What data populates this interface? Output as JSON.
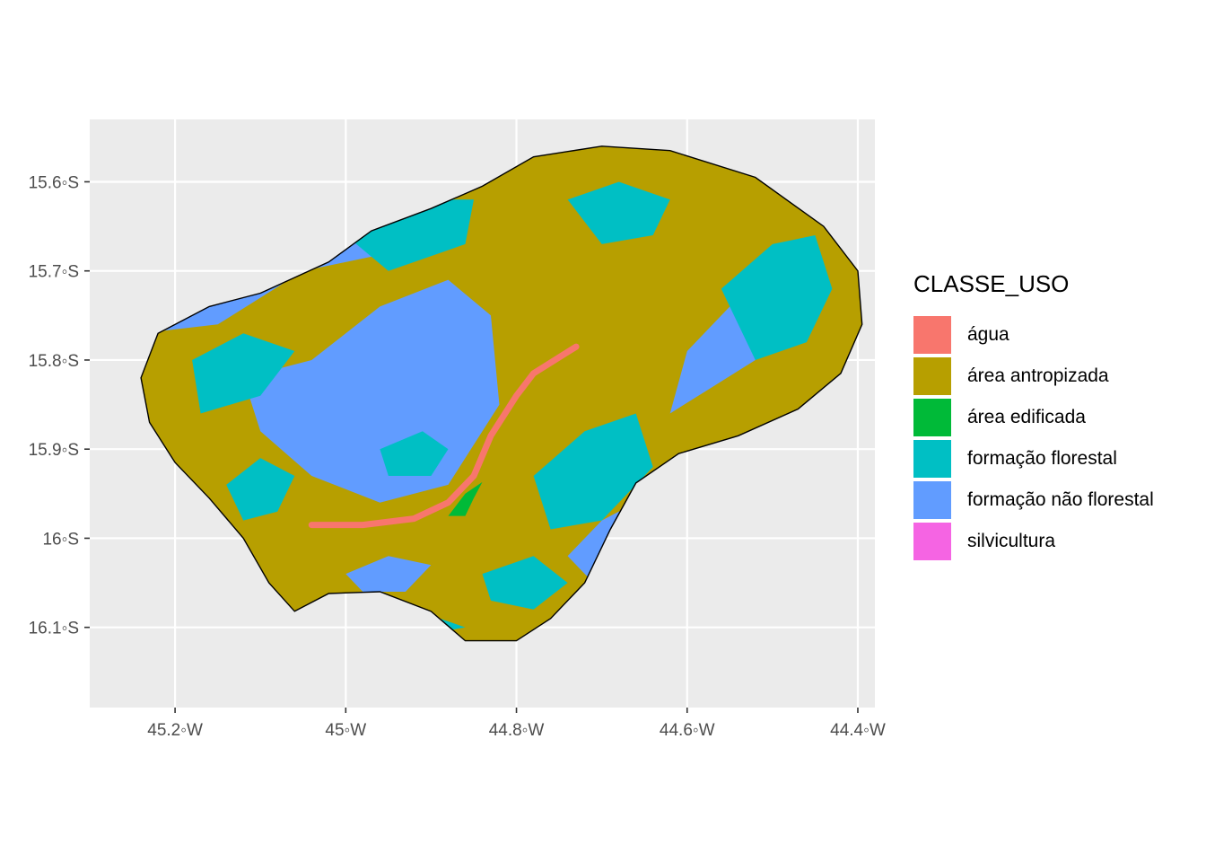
{
  "map": {
    "x_ticks": [
      {
        "lon": -45.2,
        "label": "45.2◦W"
      },
      {
        "lon": -45.0,
        "label": "45◦W"
      },
      {
        "lon": -44.8,
        "label": "44.8◦W"
      },
      {
        "lon": -44.6,
        "label": "44.6◦W"
      },
      {
        "lon": -44.4,
        "label": "44.4◦W"
      }
    ],
    "y_ticks": [
      {
        "lat": -15.6,
        "label": "15.6◦S"
      },
      {
        "lat": -15.7,
        "label": "15.7◦S"
      },
      {
        "lat": -15.8,
        "label": "15.8◦S"
      },
      {
        "lat": -15.9,
        "label": "15.9◦S"
      },
      {
        "lat": -16.0,
        "label": "16◦S"
      },
      {
        "lat": -16.1,
        "label": "16.1◦S"
      }
    ],
    "xlim": [
      -45.3,
      -44.38
    ],
    "ylim": [
      -16.19,
      -15.53
    ],
    "panel_background": "#ebebeb",
    "grid": true,
    "outline": [
      [
        -45.1,
        -15.725
      ],
      [
        -45.02,
        -15.69
      ],
      [
        -44.97,
        -15.655
      ],
      [
        -44.9,
        -15.63
      ],
      [
        -44.84,
        -15.605
      ],
      [
        -44.78,
        -15.572
      ],
      [
        -44.7,
        -15.56
      ],
      [
        -44.62,
        -15.565
      ],
      [
        -44.52,
        -15.595
      ],
      [
        -44.44,
        -15.65
      ],
      [
        -44.4,
        -15.7
      ],
      [
        -44.395,
        -15.76
      ],
      [
        -44.42,
        -15.815
      ],
      [
        -44.47,
        -15.855
      ],
      [
        -44.54,
        -15.885
      ],
      [
        -44.61,
        -15.905
      ],
      [
        -44.66,
        -15.938
      ],
      [
        -44.69,
        -15.99
      ],
      [
        -44.72,
        -16.05
      ],
      [
        -44.76,
        -16.09
      ],
      [
        -44.8,
        -16.115
      ],
      [
        -44.86,
        -16.115
      ],
      [
        -44.9,
        -16.082
      ],
      [
        -44.96,
        -16.06
      ],
      [
        -45.02,
        -16.062
      ],
      [
        -45.06,
        -16.082
      ],
      [
        -45.09,
        -16.05
      ],
      [
        -45.12,
        -16.0
      ],
      [
        -45.16,
        -15.955
      ],
      [
        -45.2,
        -15.915
      ],
      [
        -45.23,
        -15.87
      ],
      [
        -45.24,
        -15.82
      ],
      [
        -45.22,
        -15.77
      ],
      [
        -45.16,
        -15.74
      ]
    ],
    "river": [
      [
        -45.04,
        -15.985
      ],
      [
        -44.98,
        -15.985
      ],
      [
        -44.92,
        -15.978
      ],
      [
        -44.88,
        -15.96
      ],
      [
        -44.85,
        -15.93
      ],
      [
        -44.83,
        -15.885
      ],
      [
        -44.8,
        -15.84
      ],
      [
        -44.78,
        -15.815
      ],
      [
        -44.73,
        -15.785
      ]
    ],
    "edificada": [
      [
        -44.88,
        -15.975
      ],
      [
        -44.86,
        -15.95
      ],
      [
        -44.84,
        -15.937
      ],
      [
        -44.85,
        -15.955
      ],
      [
        -44.86,
        -15.975
      ]
    ],
    "patches": [
      {
        "cls": "formação não florestal",
        "points": [
          [
            -45.25,
            -15.71
          ],
          [
            -45.12,
            -15.64
          ],
          [
            -45.04,
            -15.59
          ],
          [
            -44.96,
            -15.58
          ],
          [
            -44.93,
            -15.62
          ],
          [
            -44.95,
            -15.68
          ],
          [
            -45.05,
            -15.7
          ],
          [
            -45.15,
            -15.76
          ],
          [
            -45.24,
            -15.77
          ]
        ]
      },
      {
        "cls": "formação não florestal",
        "points": [
          [
            -45.04,
            -15.8
          ],
          [
            -44.96,
            -15.74
          ],
          [
            -44.88,
            -15.71
          ],
          [
            -44.83,
            -15.75
          ],
          [
            -44.82,
            -15.85
          ],
          [
            -44.88,
            -15.94
          ],
          [
            -44.96,
            -15.96
          ],
          [
            -45.04,
            -15.93
          ],
          [
            -45.1,
            -15.88
          ],
          [
            -45.12,
            -15.82
          ]
        ]
      },
      {
        "cls": "formação não florestal",
        "points": [
          [
            -44.74,
            -16.02
          ],
          [
            -44.7,
            -15.98
          ],
          [
            -44.66,
            -15.96
          ],
          [
            -44.6,
            -15.99
          ],
          [
            -44.56,
            -16.04
          ],
          [
            -44.6,
            -16.07
          ],
          [
            -44.68,
            -16.08
          ]
        ]
      },
      {
        "cls": "formação não florestal",
        "points": [
          [
            -44.62,
            -15.86
          ],
          [
            -44.57,
            -15.83
          ],
          [
            -44.52,
            -15.8
          ],
          [
            -44.48,
            -15.76
          ],
          [
            -44.46,
            -15.72
          ],
          [
            -44.48,
            -15.7
          ],
          [
            -44.54,
            -15.73
          ],
          [
            -44.6,
            -15.79
          ]
        ]
      },
      {
        "cls": "formação não florestal",
        "points": [
          [
            -45.0,
            -16.04
          ],
          [
            -44.95,
            -16.02
          ],
          [
            -44.9,
            -16.03
          ],
          [
            -44.93,
            -16.06
          ],
          [
            -44.98,
            -16.06
          ]
        ]
      },
      {
        "cls": "formação florestal",
        "points": [
          [
            -45.18,
            -15.8
          ],
          [
            -45.12,
            -15.77
          ],
          [
            -45.06,
            -15.79
          ],
          [
            -45.1,
            -15.84
          ],
          [
            -45.17,
            -15.86
          ]
        ]
      },
      {
        "cls": "formação florestal",
        "points": [
          [
            -45.0,
            -15.66
          ],
          [
            -44.92,
            -15.62
          ],
          [
            -44.85,
            -15.62
          ],
          [
            -44.86,
            -15.67
          ],
          [
            -44.95,
            -15.7
          ]
        ]
      },
      {
        "cls": "formação florestal",
        "points": [
          [
            -44.78,
            -15.93
          ],
          [
            -44.72,
            -15.88
          ],
          [
            -44.66,
            -15.86
          ],
          [
            -44.64,
            -15.92
          ],
          [
            -44.7,
            -15.98
          ],
          [
            -44.76,
            -15.99
          ]
        ]
      },
      {
        "cls": "formação florestal",
        "points": [
          [
            -44.56,
            -15.72
          ],
          [
            -44.5,
            -15.67
          ],
          [
            -44.45,
            -15.66
          ],
          [
            -44.43,
            -15.72
          ],
          [
            -44.46,
            -15.78
          ],
          [
            -44.52,
            -15.8
          ]
        ]
      },
      {
        "cls": "formação florestal",
        "points": [
          [
            -44.96,
            -15.9
          ],
          [
            -44.91,
            -15.88
          ],
          [
            -44.88,
            -15.9
          ],
          [
            -44.9,
            -15.93
          ],
          [
            -44.95,
            -15.93
          ]
        ]
      },
      {
        "cls": "formação florestal",
        "points": [
          [
            -44.98,
            -16.08
          ],
          [
            -44.92,
            -16.08
          ],
          [
            -44.86,
            -16.1
          ],
          [
            -44.92,
            -16.11
          ],
          [
            -44.98,
            -16.1
          ]
        ]
      },
      {
        "cls": "formação florestal",
        "points": [
          [
            -44.84,
            -16.04
          ],
          [
            -44.78,
            -16.02
          ],
          [
            -44.74,
            -16.05
          ],
          [
            -44.78,
            -16.08
          ],
          [
            -44.83,
            -16.07
          ]
        ]
      },
      {
        "cls": "formação florestal",
        "points": [
          [
            -45.14,
            -15.94
          ],
          [
            -45.1,
            -15.91
          ],
          [
            -45.06,
            -15.93
          ],
          [
            -45.08,
            -15.97
          ],
          [
            -45.12,
            -15.98
          ]
        ]
      },
      {
        "cls": "formação florestal",
        "points": [
          [
            -44.74,
            -15.62
          ],
          [
            -44.68,
            -15.6
          ],
          [
            -44.62,
            -15.62
          ],
          [
            -44.64,
            -15.66
          ],
          [
            -44.7,
            -15.67
          ]
        ]
      }
    ]
  },
  "legend": {
    "title": "CLASSE_USO",
    "items": [
      {
        "label": "água",
        "color": "#F8766D"
      },
      {
        "label": "área antropizada",
        "color": "#B79F00"
      },
      {
        "label": "área edificada",
        "color": "#00BA38"
      },
      {
        "label": "formação florestal",
        "color": "#00BFC4"
      },
      {
        "label": "formação não florestal",
        "color": "#619CFF"
      },
      {
        "label": "silvicultura",
        "color": "#F564E3"
      }
    ]
  }
}
